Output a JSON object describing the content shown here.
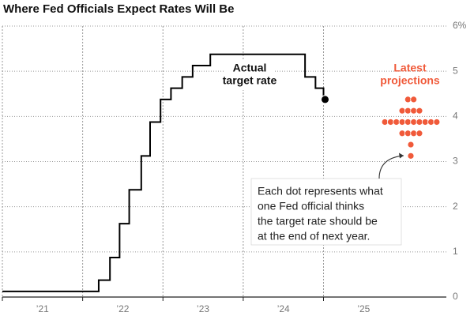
{
  "chart_data": {
    "type": "line",
    "title": "Where Fed Officials Expect Rates Will Be",
    "xlim": [
      2021,
      2026.53
    ],
    "xticks": [
      {
        "value": 2021,
        "label": "’21"
      },
      {
        "value": 2022,
        "label": "’22"
      },
      {
        "value": 2023,
        "label": "’23"
      },
      {
        "value": 2024,
        "label": "’24"
      },
      {
        "value": 2025,
        "label": "’25"
      }
    ],
    "ylim": [
      0,
      6
    ],
    "yticks": [
      0,
      1,
      2,
      3,
      4,
      5,
      {
        "value": 6,
        "label": "6%"
      }
    ],
    "grid": true,
    "x": [
      2021,
      2022.2,
      2022.34,
      2022.46,
      2022.58,
      2022.73,
      2022.84,
      2022.97,
      2023.1,
      2023.24,
      2023.37,
      2023.59,
      2024.77,
      2024.9,
      2025.0
    ],
    "series": [
      {
        "color": "#000000",
        "values": [
          0.125,
          0.375,
          0.875,
          1.625,
          2.375,
          3.125,
          3.875,
          4.375,
          4.625,
          4.875,
          5.125,
          5.375,
          4.875,
          4.625,
          4.375
        ]
      }
    ],
    "projections": {
      "color": "#f05a3a",
      "values": [
        4.375,
        4.125,
        3.875,
        3.625,
        3.375,
        3.125
      ],
      "counts": [
        2,
        4,
        10,
        4,
        1,
        1
      ]
    },
    "actual_label": [
      "Actual",
      "target rate"
    ],
    "projections_label": [
      "Latest",
      "projections"
    ],
    "note": [
      "Each dot represents what",
      "one Fed official thinks",
      "the target rate should be",
      "at the end of next year."
    ]
  }
}
